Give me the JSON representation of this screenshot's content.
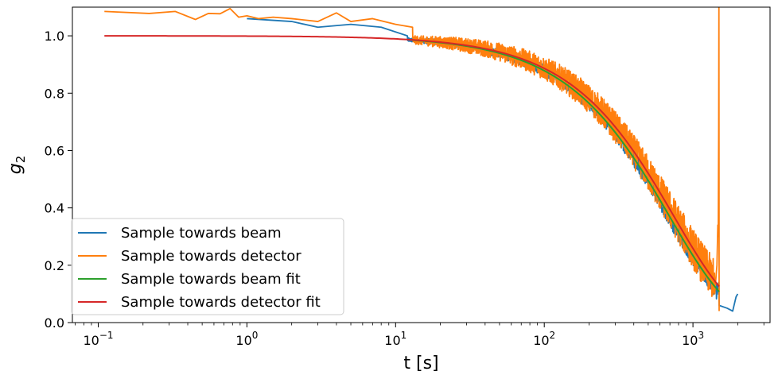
{
  "chart_data": {
    "type": "line",
    "xlabel": "t [s]",
    "ylabel": "g",
    "ylabel_subscript": "2",
    "xscale": "log",
    "xlim": [
      0.067,
      3300
    ],
    "ylim": [
      0,
      1.1
    ],
    "x_ticks": [
      {
        "value": 0.1,
        "base": "10",
        "exp": "−1"
      },
      {
        "value": 1,
        "base": "10",
        "exp": "0"
      },
      {
        "value": 10,
        "base": "10",
        "exp": "1"
      },
      {
        "value": 100,
        "base": "10",
        "exp": "2"
      },
      {
        "value": 1000,
        "base": "10",
        "exp": "3"
      }
    ],
    "y_ticks": [
      {
        "value": 0.0,
        "label": "0.0"
      },
      {
        "value": 0.2,
        "label": "0.2"
      },
      {
        "value": 0.4,
        "label": "0.4"
      },
      {
        "value": 0.6,
        "label": "0.6"
      },
      {
        "value": 0.8,
        "label": "0.8"
      },
      {
        "value": 1.0,
        "label": "1.0"
      }
    ],
    "grid": false,
    "legend_position": "lower-left",
    "series": [
      {
        "name": "Sample towards beam",
        "color": "#1f77b4",
        "kind": "noisy-data",
        "x_range": [
          1.0,
          2000
        ],
        "tau": 700,
        "beta": 1.05,
        "early_points": [
          [
            1.0,
            1.06
          ],
          [
            2.0,
            1.05
          ],
          [
            3.0,
            1.03
          ],
          [
            5.0,
            1.04
          ],
          [
            8.0,
            1.03
          ],
          [
            12.0,
            1.0
          ]
        ],
        "tail_points": [
          [
            1500,
            0.06
          ],
          [
            1700,
            0.05
          ],
          [
            1850,
            0.04
          ],
          [
            1950,
            0.09
          ],
          [
            2000,
            0.1
          ]
        ]
      },
      {
        "name": "Sample towards detector",
        "color": "#ff7f0e",
        "kind": "noisy-data",
        "x_range": [
          0.11,
          1500
        ],
        "tau": 750,
        "beta": 1.05,
        "early_points": [
          [
            0.11,
            1.085
          ],
          [
            0.22,
            1.078
          ],
          [
            0.33,
            1.085
          ],
          [
            0.45,
            1.057
          ],
          [
            0.55,
            1.078
          ],
          [
            0.66,
            1.077
          ],
          [
            0.77,
            1.095
          ],
          [
            0.88,
            1.065
          ],
          [
            1.0,
            1.07
          ],
          [
            1.2,
            1.06
          ],
          [
            1.5,
            1.065
          ],
          [
            2.0,
            1.06
          ],
          [
            3.0,
            1.05
          ],
          [
            4.0,
            1.08
          ],
          [
            5.0,
            1.05
          ],
          [
            7.0,
            1.06
          ],
          [
            10.0,
            1.04
          ],
          [
            13.0,
            1.03
          ]
        ],
        "tail_points": [
          [
            1400,
            0.1
          ],
          [
            1450,
            0.2
          ],
          [
            1470,
            0.34
          ],
          [
            1480,
            0.3
          ],
          [
            1490,
            0.68
          ],
          [
            1495,
            1.1
          ],
          [
            1500,
            0.04
          ]
        ]
      },
      {
        "name": "Sample towards beam fit",
        "color": "#2ca02c",
        "kind": "fit",
        "x_range": [
          13,
          1500
        ],
        "tau": 700,
        "beta": 1.05
      },
      {
        "name": "Sample towards detector fit",
        "color": "#d62728",
        "kind": "fit",
        "x_range": [
          0.11,
          1500
        ],
        "tau": 750,
        "beta": 1.05
      }
    ]
  }
}
